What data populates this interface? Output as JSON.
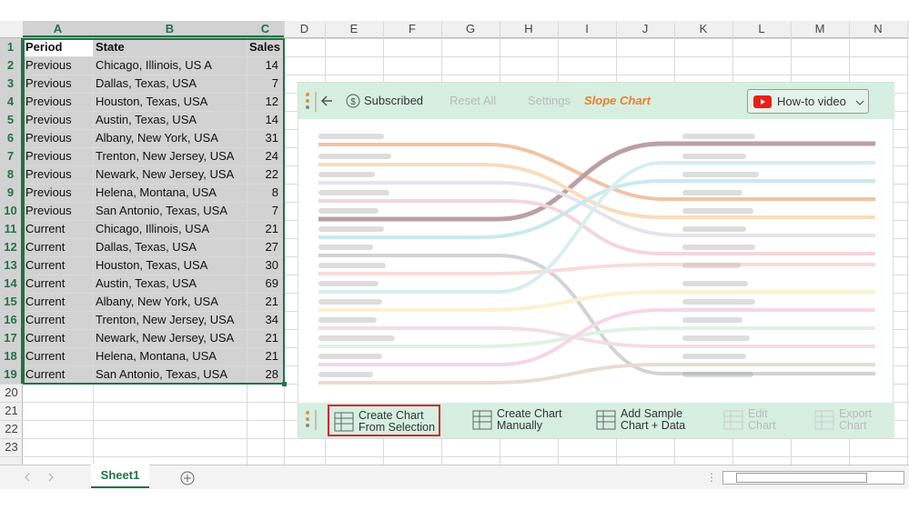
{
  "sheet": {
    "columns": [
      "A",
      "B",
      "C",
      "D",
      "E",
      "F",
      "G",
      "H",
      "I",
      "J",
      "K",
      "L",
      "M",
      "N"
    ],
    "row_numbers": [
      1,
      2,
      3,
      4,
      5,
      6,
      7,
      8,
      9,
      10,
      11,
      12,
      13,
      14,
      15,
      16,
      17,
      18,
      19,
      20,
      21,
      22,
      23
    ],
    "table": {
      "header": [
        "Period",
        "State",
        "Sales"
      ],
      "rows": [
        [
          "Previous",
          "Chicago, Illinois, US A",
          14
        ],
        [
          "Previous",
          "Dallas, Texas, USA",
          7
        ],
        [
          "Previous",
          "Houston, Texas, USA",
          12
        ],
        [
          "Previous",
          "Austin, Texas, USA",
          14
        ],
        [
          "Previous",
          "Albany, New York, USA",
          31
        ],
        [
          "Previous",
          "Trenton, New Jersey, USA",
          24
        ],
        [
          "Previous",
          "Newark, New Jersey, USA",
          22
        ],
        [
          "Previous",
          "Helena, Montana, USA",
          8
        ],
        [
          "Previous",
          "San Antonio, Texas, USA",
          7
        ],
        [
          "Current",
          "Chicago, Illinois, USA",
          21
        ],
        [
          "Current",
          "Dallas, Texas, USA",
          27
        ],
        [
          "Current",
          "Houston, Texas, USA",
          30
        ],
        [
          "Current",
          "Austin, Texas, USA",
          69
        ],
        [
          "Current",
          "Albany, New York, USA",
          21
        ],
        [
          "Current",
          "Trenton, New Jersey, USA",
          34
        ],
        [
          "Current",
          "Newark, New Jersey, USA",
          21
        ],
        [
          "Current",
          "Helena, Montana, USA",
          21
        ],
        [
          "Current",
          "San Antonio, Texas, USA",
          28
        ]
      ]
    },
    "tab": "Sheet1"
  },
  "toolbar": {
    "subscribed": "Subscribed",
    "reset": "Reset All",
    "settings": "Settings",
    "chart_name": "Slope Chart",
    "video": "How-to video"
  },
  "actions": [
    {
      "line1": "Create Chart",
      "line2": "From Selection"
    },
    {
      "line1": "Create Chart",
      "line2": "Manually"
    },
    {
      "line1": "Add Sample",
      "line2": "Chart + Data"
    },
    {
      "line1": "Edit",
      "line2": "Chart"
    },
    {
      "line1": "Export",
      "line2": "Chart"
    }
  ]
}
